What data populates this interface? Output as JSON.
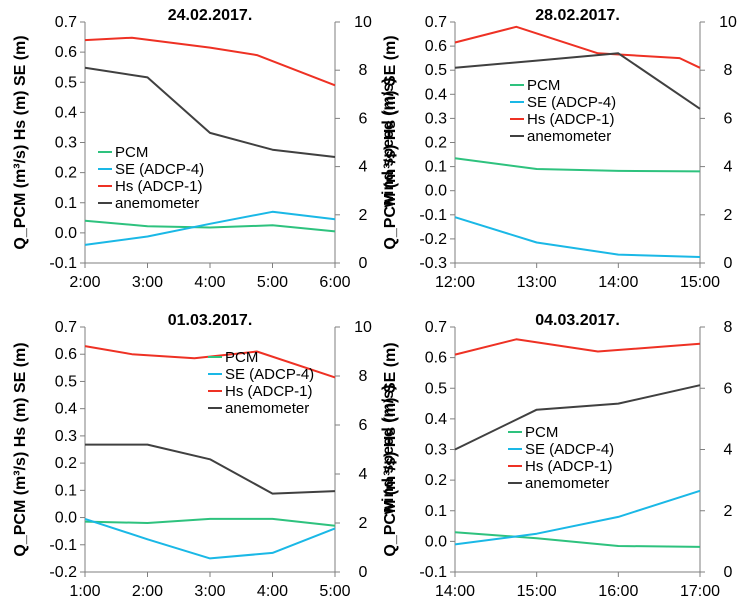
{
  "colors": {
    "PCM": "#2ec27e",
    "SE": "#1ab8e6",
    "Hs": "#ee3124",
    "anemometer": "#404040"
  },
  "chart_data": [
    {
      "type": "line",
      "title": "24.02.2017.",
      "ylabel": "Q_PCM (m³/s) Hs (m) SE (m)",
      "y2label": "wind speed (m/s)",
      "x_ticks": [
        "2:00",
        "3:00",
        "4:00",
        "5:00",
        "6:00"
      ],
      "xlim": [
        2,
        6
      ],
      "ylim": [
        -0.1,
        0.7
      ],
      "y_ticks": [
        "-0.1",
        "0.0",
        "0.1",
        "0.2",
        "0.3",
        "0.4",
        "0.5",
        "0.6",
        "0.7"
      ],
      "y2lim": [
        0,
        10
      ],
      "y2_ticks": [
        "0",
        "2",
        "4",
        "6",
        "8",
        "10"
      ],
      "legend_position": "lower-left",
      "series": [
        {
          "name": "PCM",
          "axis": "left",
          "x": [
            2,
            3,
            4,
            5,
            6
          ],
          "y": [
            0.04,
            0.022,
            0.018,
            0.025,
            0.005
          ]
        },
        {
          "name": "SE (ADCP-4)",
          "axis": "left",
          "x": [
            2,
            3,
            4,
            5,
            6
          ],
          "y": [
            -0.04,
            -0.012,
            0.03,
            0.07,
            0.045
          ]
        },
        {
          "name": "Hs (ADCP-1)",
          "axis": "left",
          "x": [
            2,
            2.75,
            4,
            4.75,
            6
          ],
          "y": [
            0.64,
            0.648,
            0.615,
            0.59,
            0.49
          ]
        },
        {
          "name": "anemometer",
          "axis": "right",
          "x": [
            2,
            3,
            4,
            5,
            6
          ],
          "y": [
            8.1,
            7.7,
            5.4,
            4.7,
            4.4
          ]
        }
      ]
    },
    {
      "type": "line",
      "title": "28.02.2017.",
      "ylabel": "Q_PCM (m³/s) Hs (m) SE (m)",
      "y2label": "wind speed (m/s)",
      "x_ticks": [
        "12:00",
        "13:00",
        "14:00",
        "15:00"
      ],
      "xlim": [
        12,
        15
      ],
      "ylim": [
        -0.3,
        0.7
      ],
      "y_ticks": [
        "-0.3",
        "-0.2",
        "-0.1",
        "0.0",
        "0.1",
        "0.2",
        "0.3",
        "0.4",
        "0.5",
        "0.6",
        "0.7"
      ],
      "y2lim": [
        0,
        10
      ],
      "y2_ticks": [
        "0",
        "2",
        "4",
        "6",
        "8",
        "10"
      ],
      "legend_position": "center",
      "series": [
        {
          "name": "PCM",
          "axis": "left",
          "x": [
            12,
            13,
            14,
            15
          ],
          "y": [
            0.135,
            0.09,
            0.082,
            0.08
          ]
        },
        {
          "name": "SE (ADCP-4)",
          "axis": "left",
          "x": [
            12,
            13,
            14,
            15
          ],
          "y": [
            -0.11,
            -0.215,
            -0.265,
            -0.275
          ]
        },
        {
          "name": "Hs (ADCP-1)",
          "axis": "left",
          "x": [
            12,
            12.75,
            13.75,
            14.75,
            15
          ],
          "y": [
            0.615,
            0.68,
            0.57,
            0.55,
            0.51
          ]
        },
        {
          "name": "anemometer",
          "axis": "right",
          "x": [
            12,
            13,
            14,
            15
          ],
          "y": [
            8.1,
            8.4,
            8.7,
            6.4
          ]
        }
      ]
    },
    {
      "type": "line",
      "title": "01.03.2017.",
      "ylabel": "Q_PCM (m³/s) Hs (m) SE (m)",
      "y2label": "wind speed (m/s)",
      "x_ticks": [
        "1:00",
        "2:00",
        "3:00",
        "4:00",
        "5:00"
      ],
      "xlim": [
        1,
        5
      ],
      "ylim": [
        -0.2,
        0.7
      ],
      "y_ticks": [
        "-0.2",
        "-0.1",
        "0.0",
        "0.1",
        "0.2",
        "0.3",
        "0.4",
        "0.5",
        "0.6",
        "0.7"
      ],
      "y2lim": [
        0,
        10
      ],
      "y2_ticks": [
        "0",
        "2",
        "4",
        "6",
        "8",
        "10"
      ],
      "legend_position": "center-right",
      "series": [
        {
          "name": "PCM",
          "axis": "left",
          "x": [
            1,
            2,
            3,
            4,
            5
          ],
          "y": [
            -0.015,
            -0.02,
            -0.005,
            -0.005,
            -0.03
          ]
        },
        {
          "name": "SE (ADCP-4)",
          "axis": "left",
          "x": [
            1,
            2,
            3,
            4,
            5
          ],
          "y": [
            -0.005,
            -0.08,
            -0.15,
            -0.13,
            -0.04
          ]
        },
        {
          "name": "Hs (ADCP-1)",
          "axis": "left",
          "x": [
            1,
            1.75,
            2.75,
            3.75,
            5
          ],
          "y": [
            0.63,
            0.6,
            0.585,
            0.61,
            0.515
          ]
        },
        {
          "name": "anemometer",
          "axis": "right",
          "x": [
            1,
            2,
            3,
            4,
            5
          ],
          "y": [
            5.2,
            5.2,
            4.6,
            3.2,
            3.3
          ]
        }
      ]
    },
    {
      "type": "line",
      "title": "04.03.2017.",
      "ylabel": "Q_PCM (m³/s) Hs (m) SE (m)",
      "y2label": "wind speed (m/s)",
      "x_ticks": [
        "14:00",
        "15:00",
        "16:00",
        "17:00"
      ],
      "xlim": [
        14,
        17
      ],
      "ylim": [
        -0.1,
        0.7
      ],
      "y_ticks": [
        "-0.1",
        "0.0",
        "0.1",
        "0.2",
        "0.3",
        "0.4",
        "0.5",
        "0.6",
        "0.7"
      ],
      "y2lim": [
        0,
        8
      ],
      "y2_ticks": [
        "0",
        "2",
        "4",
        "6",
        "8"
      ],
      "legend_position": "center",
      "series": [
        {
          "name": "PCM",
          "axis": "left",
          "x": [
            14,
            15,
            16,
            17
          ],
          "y": [
            0.03,
            0.01,
            -0.015,
            -0.018
          ]
        },
        {
          "name": "SE (ADCP-4)",
          "axis": "left",
          "x": [
            14,
            15,
            16,
            17
          ],
          "y": [
            -0.01,
            0.025,
            0.08,
            0.165
          ]
        },
        {
          "name": "Hs (ADCP-1)",
          "axis": "left",
          "x": [
            14,
            14.75,
            15.75,
            17
          ],
          "y": [
            0.61,
            0.66,
            0.62,
            0.645
          ]
        },
        {
          "name": "anemometer",
          "axis": "right",
          "x": [
            14,
            15,
            16,
            17
          ],
          "y": [
            4.0,
            5.3,
            5.5,
            6.1
          ]
        }
      ]
    }
  ]
}
